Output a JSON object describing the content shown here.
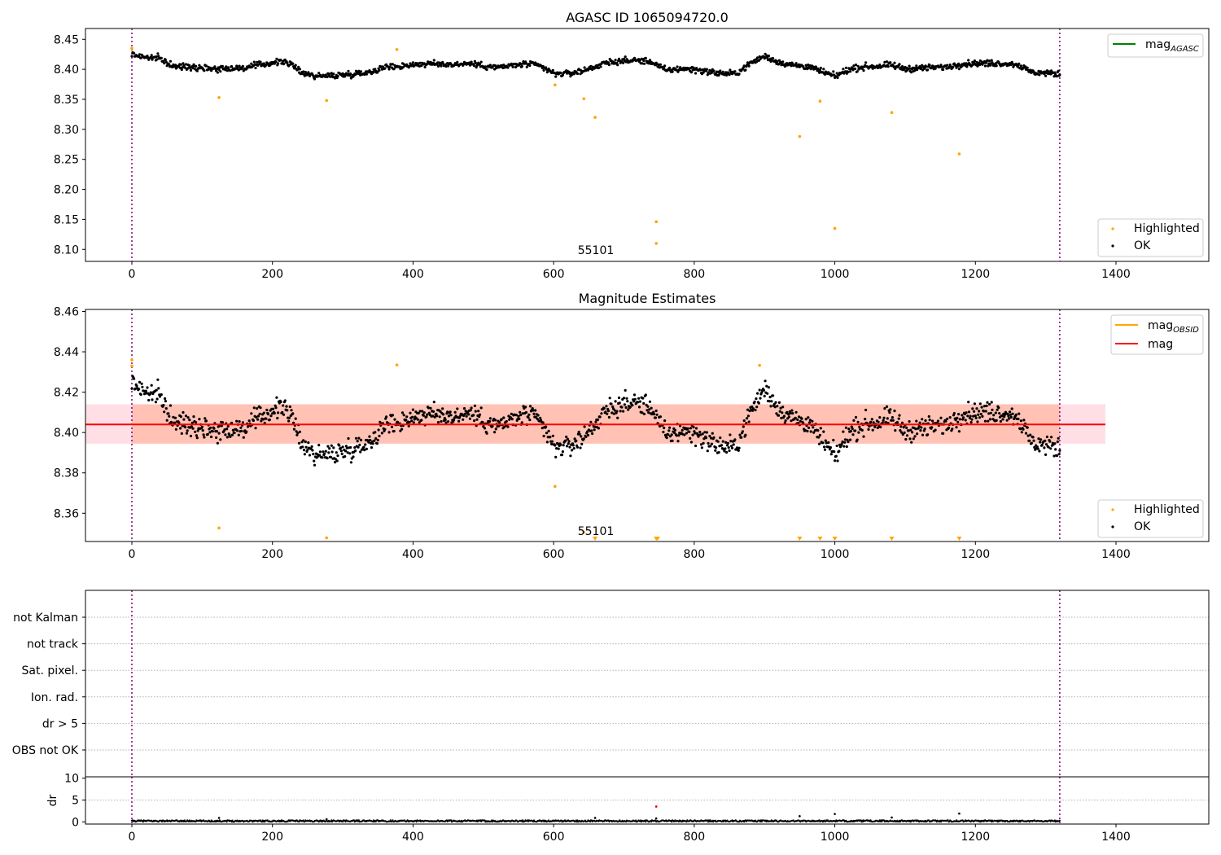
{
  "chart_data": [
    {
      "type": "scatter",
      "title": "AGASC ID 1065094720.0",
      "xlim": [
        -66,
        1532
      ],
      "ylim": [
        8.08,
        8.468
      ],
      "xticks": [
        "0",
        "200",
        "400",
        "600",
        "800",
        "1000",
        "1200",
        "1400"
      ],
      "yticks": [
        "8.10",
        "8.15",
        "8.20",
        "8.25",
        "8.30",
        "8.35",
        "8.40",
        "8.45"
      ],
      "vlines": [
        0,
        1320
      ],
      "annotation": {
        "text": "55101",
        "x": 660,
        "y": 8.09
      },
      "legend_top": [
        {
          "label": "mag",
          "subscript": "AGASC",
          "color": "#008000"
        }
      ],
      "legend_bottom": [
        {
          "label": "Highlighted",
          "color": "#ffa500"
        },
        {
          "label": "OK",
          "color": "#000000"
        }
      ],
      "series": [
        {
          "name": "Highlighted",
          "color": "#ffa500",
          "points": [
            [
              0,
              8.435
            ],
            [
              124,
              8.353
            ],
            [
              277,
              8.348
            ],
            [
              377,
              8.433
            ],
            [
              602,
              8.374
            ],
            [
              643,
              8.351
            ],
            [
              659,
              8.32
            ],
            [
              746,
              8.146
            ],
            [
              746,
              8.11
            ],
            [
              950,
              8.288
            ],
            [
              979,
              8.347
            ],
            [
              1000,
              8.135
            ],
            [
              1081,
              8.328
            ],
            [
              1177,
              8.259
            ]
          ]
        },
        {
          "name": "OK",
          "color": "#000000",
          "trend": [
            [
              0,
              8.425
            ],
            [
              20,
              8.42
            ],
            [
              40,
              8.418
            ],
            [
              60,
              8.404
            ],
            [
              80,
              8.405
            ],
            [
              100,
              8.403
            ],
            [
              120,
              8.401
            ],
            [
              140,
              8.402
            ],
            [
              160,
              8.402
            ],
            [
              180,
              8.407
            ],
            [
              200,
              8.411
            ],
            [
              220,
              8.413
            ],
            [
              240,
              8.396
            ],
            [
              260,
              8.389
            ],
            [
              280,
              8.389
            ],
            [
              300,
              8.391
            ],
            [
              320,
              8.393
            ],
            [
              340,
              8.396
            ],
            [
              360,
              8.404
            ],
            [
              380,
              8.405
            ],
            [
              400,
              8.408
            ],
            [
              420,
              8.409
            ],
            [
              440,
              8.409
            ],
            [
              460,
              8.408
            ],
            [
              480,
              8.41
            ],
            [
              500,
              8.406
            ],
            [
              520,
              8.403
            ],
            [
              540,
              8.406
            ],
            [
              560,
              8.409
            ],
            [
              580,
              8.406
            ],
            [
              600,
              8.393
            ],
            [
              620,
              8.393
            ],
            [
              640,
              8.397
            ],
            [
              660,
              8.405
            ],
            [
              680,
              8.412
            ],
            [
              700,
              8.414
            ],
            [
              720,
              8.415
            ],
            [
              740,
              8.412
            ],
            [
              760,
              8.398
            ],
            [
              780,
              8.401
            ],
            [
              800,
              8.4
            ],
            [
              820,
              8.396
            ],
            [
              840,
              8.393
            ],
            [
              860,
              8.393
            ],
            [
              880,
              8.41
            ],
            [
              900,
              8.422
            ],
            [
              920,
              8.412
            ],
            [
              940,
              8.407
            ],
            [
              960,
              8.405
            ],
            [
              980,
              8.397
            ],
            [
              1000,
              8.388
            ],
            [
              1020,
              8.4
            ],
            [
              1040,
              8.404
            ],
            [
              1060,
              8.405
            ],
            [
              1080,
              8.407
            ],
            [
              1100,
              8.401
            ],
            [
              1120,
              8.402
            ],
            [
              1140,
              8.403
            ],
            [
              1160,
              8.404
            ],
            [
              1180,
              8.409
            ],
            [
              1200,
              8.41
            ],
            [
              1220,
              8.41
            ],
            [
              1240,
              8.41
            ],
            [
              1260,
              8.408
            ],
            [
              1280,
              8.395
            ],
            [
              1300,
              8.394
            ],
            [
              1320,
              8.392
            ]
          ],
          "scatter_amplitude": 0.005
        }
      ]
    },
    {
      "type": "scatter",
      "title": "Magnitude Estimates",
      "xlim": [
        -66,
        1532
      ],
      "ylim": [
        8.346,
        8.461
      ],
      "xticks": [
        "0",
        "200",
        "400",
        "600",
        "800",
        "1000",
        "1200",
        "1400"
      ],
      "yticks": [
        "8.36",
        "8.38",
        "8.40",
        "8.42",
        "8.44",
        "8.46"
      ],
      "vlines": [
        0,
        1320
      ],
      "mean_line": {
        "value": 8.404,
        "color": "#ff0000",
        "x_range": [
          -66,
          1385
        ]
      },
      "band": {
        "low": 8.3945,
        "high": 8.414,
        "color": "#ffa07a"
      },
      "annotation": {
        "text": "55101",
        "x": 660,
        "y": 8.3487
      },
      "legend_top": [
        {
          "label": "mag",
          "subscript": "OBSID",
          "color": "#ffa500"
        },
        {
          "label": "mag",
          "subscript": "",
          "color": "#ff0000"
        }
      ],
      "legend_bottom": [
        {
          "label": "Highlighted",
          "color": "#ffa500"
        },
        {
          "label": "OK",
          "color": "#000000"
        }
      ],
      "series": [
        {
          "name": "Highlighted",
          "color": "#ffa500",
          "points": [
            [
              0,
              8.436
            ],
            [
              0,
              8.433
            ],
            [
              124,
              8.3527
            ],
            [
              277,
              8.3478
            ],
            [
              377,
              8.4335
            ],
            [
              602,
              8.3733
            ],
            [
              643,
              8.3506
            ],
            [
              893,
              8.4333
            ]
          ],
          "off_scale_markers_x": [
            659,
            746,
            748,
            950,
            979,
            1000,
            1081,
            1177
          ]
        },
        {
          "name": "OK",
          "color": "#000000",
          "trend": [
            [
              0,
              8.425
            ],
            [
              20,
              8.42
            ],
            [
              40,
              8.418
            ],
            [
              60,
              8.404
            ],
            [
              80,
              8.405
            ],
            [
              100,
              8.403
            ],
            [
              120,
              8.401
            ],
            [
              140,
              8.402
            ],
            [
              160,
              8.402
            ],
            [
              180,
              8.407
            ],
            [
              200,
              8.411
            ],
            [
              220,
              8.413
            ],
            [
              240,
              8.396
            ],
            [
              260,
              8.389
            ],
            [
              280,
              8.389
            ],
            [
              300,
              8.391
            ],
            [
              320,
              8.393
            ],
            [
              340,
              8.396
            ],
            [
              360,
              8.404
            ],
            [
              380,
              8.405
            ],
            [
              400,
              8.408
            ],
            [
              420,
              8.409
            ],
            [
              440,
              8.409
            ],
            [
              460,
              8.408
            ],
            [
              480,
              8.41
            ],
            [
              500,
              8.406
            ],
            [
              520,
              8.403
            ],
            [
              540,
              8.406
            ],
            [
              560,
              8.409
            ],
            [
              580,
              8.406
            ],
            [
              600,
              8.393
            ],
            [
              620,
              8.393
            ],
            [
              640,
              8.397
            ],
            [
              660,
              8.405
            ],
            [
              680,
              8.412
            ],
            [
              700,
              8.414
            ],
            [
              720,
              8.415
            ],
            [
              740,
              8.412
            ],
            [
              760,
              8.398
            ],
            [
              780,
              8.401
            ],
            [
              800,
              8.4
            ],
            [
              820,
              8.396
            ],
            [
              840,
              8.393
            ],
            [
              860,
              8.393
            ],
            [
              880,
              8.41
            ],
            [
              900,
              8.422
            ],
            [
              920,
              8.412
            ],
            [
              940,
              8.407
            ],
            [
              960,
              8.405
            ],
            [
              980,
              8.397
            ],
            [
              1000,
              8.388
            ],
            [
              1020,
              8.4
            ],
            [
              1040,
              8.404
            ],
            [
              1060,
              8.405
            ],
            [
              1080,
              8.407
            ],
            [
              1100,
              8.401
            ],
            [
              1120,
              8.402
            ],
            [
              1140,
              8.403
            ],
            [
              1160,
              8.404
            ],
            [
              1180,
              8.409
            ],
            [
              1200,
              8.41
            ],
            [
              1220,
              8.41
            ],
            [
              1240,
              8.41
            ],
            [
              1260,
              8.408
            ],
            [
              1280,
              8.395
            ],
            [
              1300,
              8.394
            ],
            [
              1320,
              8.392
            ]
          ],
          "scatter_amplitude": 0.005
        }
      ]
    },
    {
      "type": "scatter",
      "title": "",
      "categories": [
        "not Kalman",
        "not track",
        "Sat. pixel.",
        "Ion. rad.",
        "dr > 5",
        "OBS not OK"
      ],
      "vlines": [
        0,
        1320
      ],
      "grid": "dotted horizontal"
    },
    {
      "type": "scatter",
      "title": "",
      "ylabel": "dr",
      "xlim": [
        -66,
        1532
      ],
      "ylim": [
        -0.5,
        10.3
      ],
      "xticks": [
        "0",
        "200",
        "400",
        "600",
        "800",
        "1000",
        "1200",
        "1400"
      ],
      "yticks": [
        "0",
        "5",
        "10"
      ],
      "vlines": [
        0,
        1320
      ],
      "series": [
        {
          "name": "OK",
          "color": "#000000",
          "baseline": 0.2,
          "points": [
            [
              124,
              0.9
            ],
            [
              277,
              0.6
            ],
            [
              659,
              0.9
            ],
            [
              746,
              0.8
            ],
            [
              950,
              1.3
            ],
            [
              1000,
              1.8
            ],
            [
              1081,
              1.0
            ],
            [
              1177,
              1.9
            ]
          ]
        },
        {
          "name": "Highlighted",
          "color": "#ff0000",
          "points": [
            [
              746,
              3.5
            ]
          ]
        }
      ]
    }
  ]
}
